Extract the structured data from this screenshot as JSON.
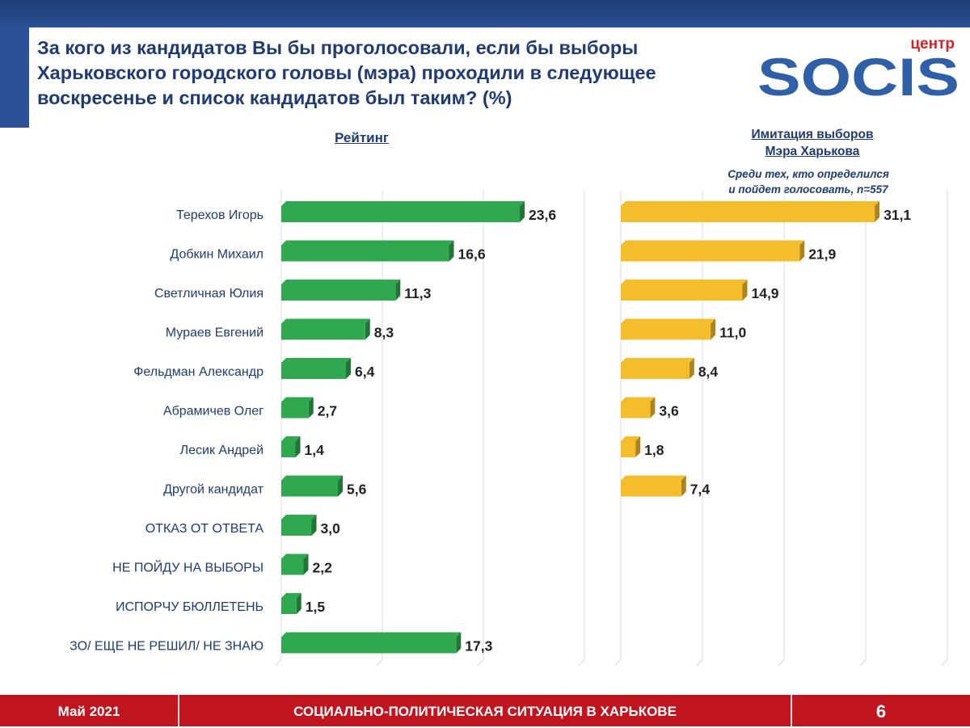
{
  "header": {
    "title": "За кого из кандидатов Вы бы проголосовали, если бы выборы Харьковского городского головы (мэра) проходили в следующее воскресенье и список кандидатов был таким? (%)",
    "logo_top": "центр",
    "logo_main": "SOCIS"
  },
  "section_left": {
    "title": "Рейтинг"
  },
  "section_right": {
    "title_line1": "Имитация выборов",
    "title_line2": "Мэра Харькова",
    "subtitle_line1": "Среди тех, кто определился",
    "subtitle_line2": "и пойдет голосовать, n=557"
  },
  "footer": {
    "date": "Май 2021",
    "title": "СОЦИАЛЬНО-ПОЛИТИЧЕСКАЯ СИТУАЦИЯ В ХАРЬКОВЕ",
    "page": "6"
  },
  "colors": {
    "navy": "#1f3b73",
    "green": "#2fa84f",
    "yellow": "#f4bd2b",
    "red": "#c0141e",
    "logo_blue": "#2f5fa7",
    "logo_red": "#d3202a"
  },
  "chart_data": [
    {
      "type": "bar",
      "orientation": "horizontal",
      "title": "Рейтинг",
      "categories": [
        "Терехов Игорь",
        "Добкин Михаил",
        "Светличная Юлия",
        "Мураев Евгений",
        "Фельдман Александр",
        "Абрамичев Олег",
        "Лесик Андрей",
        "Другой кандидат",
        "ОТКАЗ ОТ ОТВЕТА",
        "НЕ ПОЙДУ НА ВЫБОРЫ",
        "ИСПОРЧУ БЮЛЛЕТЕНЬ",
        "ЗО/ ЕЩЕ НЕ РЕШИЛ/ НЕ ЗНАЮ"
      ],
      "values": [
        23.6,
        16.6,
        11.3,
        8.3,
        6.4,
        2.7,
        1.4,
        5.6,
        3.0,
        2.2,
        1.5,
        17.3
      ],
      "value_labels": [
        "23,6",
        "16,6",
        "11,3",
        "8,3",
        "6,4",
        "2,7",
        "1,4",
        "5,6",
        "3,0",
        "2,2",
        "1,5",
        "17,3"
      ],
      "xlim": [
        0,
        30
      ],
      "grid": true,
      "color": "#2fa84f"
    },
    {
      "type": "bar",
      "orientation": "horizontal",
      "title": "Имитация выборов Мэра Харькова",
      "categories": [
        "Терехов Игорь",
        "Добкин Михаил",
        "Светличная Юлия",
        "Мураев Евгений",
        "Фельдман Александр",
        "Абрамичев Олег",
        "Лесик Андрей",
        "Другой кандидат"
      ],
      "values": [
        31.1,
        21.9,
        14.9,
        11.0,
        8.4,
        3.6,
        1.8,
        7.4
      ],
      "value_labels": [
        "31,1",
        "21,9",
        "14,9",
        "11,0",
        "8,4",
        "3,6",
        "1,8",
        "7,4"
      ],
      "xlim": [
        0,
        40
      ],
      "grid": true,
      "color": "#f4bd2b"
    }
  ]
}
